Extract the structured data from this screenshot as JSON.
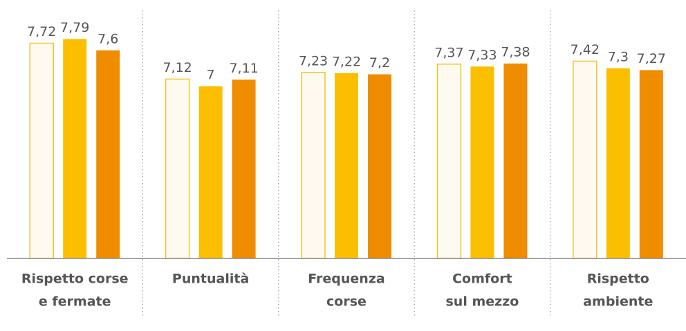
{
  "chart_data": {
    "type": "bar",
    "categories": [
      [
        "Rispetto corse",
        "e fermate"
      ],
      [
        "Puntualità"
      ],
      [
        "Frequenza",
        "corse"
      ],
      [
        "Comfort",
        "sul mezzo"
      ],
      [
        "Rispetto",
        "ambiente"
      ]
    ],
    "series": [
      {
        "color": "#fffaef",
        "stroke": "#f5c22b",
        "values": [
          7.72,
          7.12,
          7.23,
          7.37,
          7.42
        ],
        "value_labels": [
          "7,72",
          "7,12",
          "7,23",
          "7,37",
          "7,42"
        ]
      },
      {
        "color": "#fbbf00",
        "values": [
          7.79,
          7.0,
          7.22,
          7.33,
          7.3
        ],
        "value_labels": [
          "7,79",
          "7",
          "7,22",
          "7,33",
          "7,3"
        ]
      },
      {
        "color": "#f08c00",
        "values": [
          7.6,
          7.11,
          7.2,
          7.38,
          7.27
        ],
        "value_labels": [
          "7,6",
          "7,11",
          "7,2",
          "7,38",
          "7,27"
        ]
      }
    ],
    "ylim": [
      4.12,
      8.2
    ]
  }
}
